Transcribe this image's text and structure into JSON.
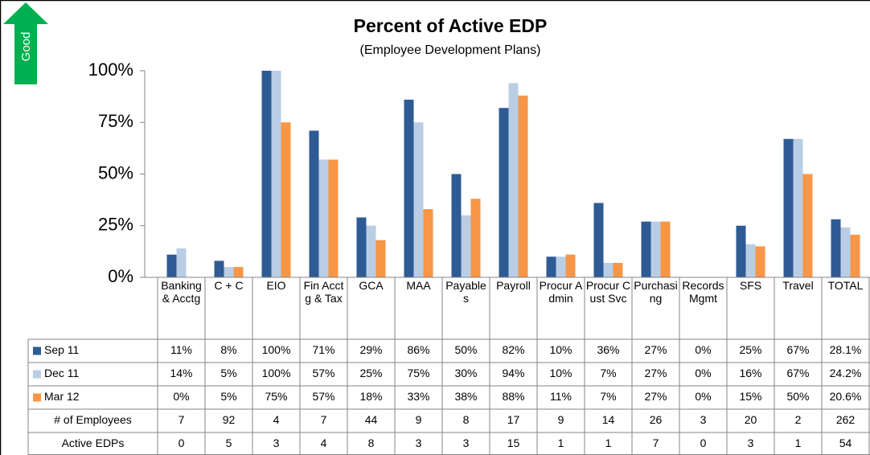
{
  "chart_data": {
    "type": "bar",
    "title": "Percent of Active EDP",
    "subtitle": "(Employee Development Plans)",
    "annotation": "Good",
    "categories": [
      "Banking & Acctg",
      "C + C",
      "EIO",
      "Fin Acctg & Tax",
      "GCA",
      "MAA",
      "Payables",
      "Payroll",
      "Procur Admin",
      "Procur Cust Svc",
      "Purchasing",
      "Records Mgmt",
      "SFS",
      "Travel",
      "TOTAL"
    ],
    "series": [
      {
        "name": "Sep 11",
        "color": "#2f5b94",
        "values": [
          11,
          8,
          100,
          71,
          29,
          86,
          50,
          82,
          10,
          36,
          27,
          0,
          25,
          67,
          28.1
        ],
        "value_labels": [
          "11%",
          "8%",
          "100%",
          "71%",
          "29%",
          "86%",
          "50%",
          "82%",
          "10%",
          "36%",
          "27%",
          "0%",
          "25%",
          "67%",
          "28.1%"
        ]
      },
      {
        "name": "Dec 11",
        "color": "#b9cde5",
        "values": [
          14,
          5,
          100,
          57,
          25,
          75,
          30,
          94,
          10,
          7,
          27,
          0,
          16,
          67,
          24.2
        ],
        "value_labels": [
          "14%",
          "5%",
          "100%",
          "57%",
          "25%",
          "75%",
          "30%",
          "94%",
          "10%",
          "7%",
          "27%",
          "0%",
          "16%",
          "67%",
          "24.2%"
        ]
      },
      {
        "name": "Mar 12",
        "color": "#f79646",
        "values": [
          0,
          5,
          75,
          57,
          18,
          33,
          38,
          88,
          11,
          7,
          27,
          0,
          15,
          50,
          20.6
        ],
        "value_labels": [
          "0%",
          "5%",
          "75%",
          "57%",
          "18%",
          "33%",
          "38%",
          "88%",
          "11%",
          "7%",
          "27%",
          "0%",
          "15%",
          "50%",
          "20.6%"
        ]
      }
    ],
    "table_rows": [
      {
        "name": "# of Employees",
        "values": [
          7,
          92,
          4,
          7,
          44,
          9,
          8,
          17,
          9,
          14,
          26,
          3,
          20,
          2,
          262
        ]
      },
      {
        "name": "Active EDPs",
        "values": [
          0,
          5,
          3,
          4,
          8,
          3,
          3,
          15,
          1,
          1,
          7,
          0,
          3,
          1,
          54
        ]
      }
    ],
    "ylim": [
      0,
      100
    ],
    "yticks": [
      {
        "value": 0,
        "label": "0%"
      },
      {
        "value": 25,
        "label": "25%"
      },
      {
        "value": 50,
        "label": "50%"
      },
      {
        "value": 75,
        "label": "75%"
      },
      {
        "value": 100,
        "label": "100%"
      }
    ]
  }
}
